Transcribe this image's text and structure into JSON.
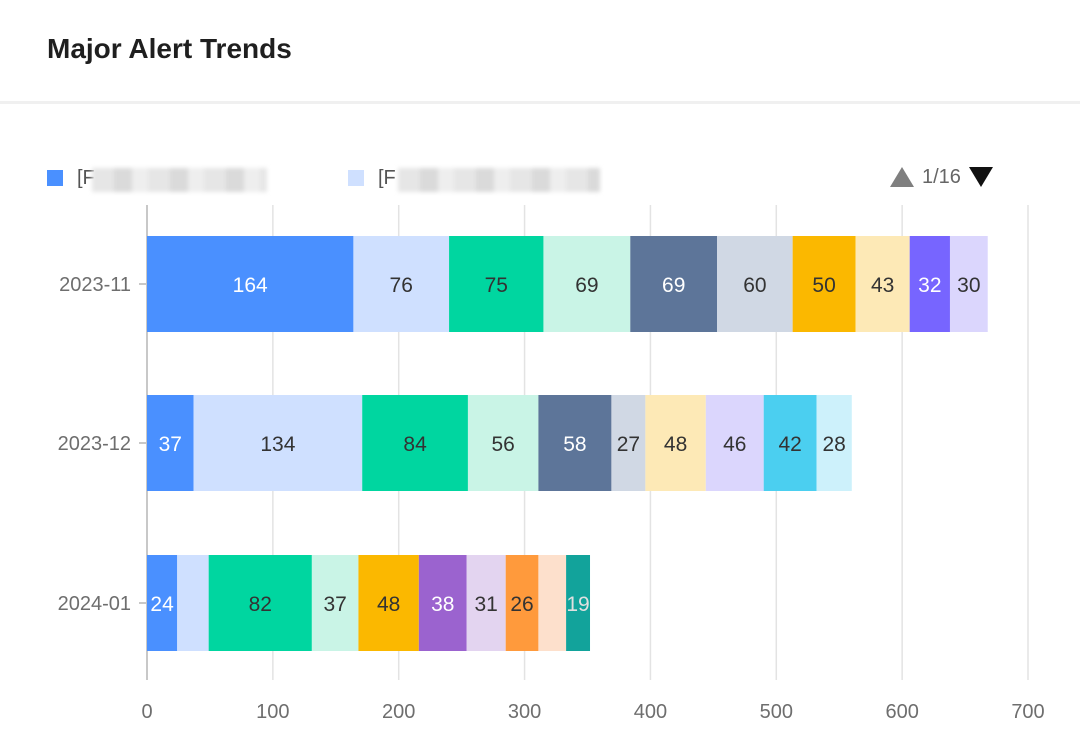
{
  "header": {
    "title": "Major Alert Trends"
  },
  "legend": {
    "items": [
      {
        "label": "[F",
        "color": "#4a90ff"
      },
      {
        "label": "[F",
        "color": "#cfe0ff"
      }
    ],
    "pager": {
      "text": "1/16"
    }
  },
  "chart_data": {
    "type": "bar",
    "orientation": "horizontal",
    "stacked": true,
    "title": "Major Alert Trends",
    "categories": [
      "2023-11",
      "2023-12",
      "2024-01"
    ],
    "xlim": [
      0,
      700
    ],
    "xticks": [
      0,
      100,
      200,
      300,
      400,
      500,
      600,
      700
    ],
    "grid": true,
    "legend_position": "top-left",
    "rows": [
      {
        "category": "2023-11",
        "segments": [
          {
            "value": 164,
            "color": "#4a90ff",
            "label_color": "#ffffff"
          },
          {
            "value": 76,
            "color": "#cfe0ff",
            "label_color": "#333333"
          },
          {
            "value": 75,
            "color": "#00d6a0",
            "label_color": "#333333"
          },
          {
            "value": 69,
            "color": "#c9f4e6",
            "label_color": "#333333"
          },
          {
            "value": 69,
            "color": "#5d7599",
            "label_color": "#ffffff"
          },
          {
            "value": 60,
            "color": "#d0d8e4",
            "label_color": "#333333"
          },
          {
            "value": 50,
            "color": "#fbb800",
            "label_color": "#333333"
          },
          {
            "value": 43,
            "color": "#fde9b6",
            "label_color": "#333333"
          },
          {
            "value": 32,
            "color": "#7765ff",
            "label_color": "#ffffff"
          },
          {
            "value": 30,
            "color": "#dbd6fd",
            "label_color": "#333333"
          }
        ]
      },
      {
        "category": "2023-12",
        "segments": [
          {
            "value": 37,
            "color": "#4a90ff",
            "label_color": "#ffffff"
          },
          {
            "value": 134,
            "color": "#cfe0ff",
            "label_color": "#333333"
          },
          {
            "value": 84,
            "color": "#00d6a0",
            "label_color": "#333333"
          },
          {
            "value": 56,
            "color": "#c9f4e6",
            "label_color": "#333333"
          },
          {
            "value": 58,
            "color": "#5d7599",
            "label_color": "#ffffff"
          },
          {
            "value": 27,
            "color": "#d0d8e4",
            "label_color": "#333333"
          },
          {
            "value": 48,
            "color": "#fde9b6",
            "label_color": "#333333"
          },
          {
            "value": 46,
            "color": "#dbd6fd",
            "label_color": "#333333"
          },
          {
            "value": 42,
            "color": "#4bcff0",
            "label_color": "#333333"
          },
          {
            "value": 28,
            "color": "#cdf1fb",
            "label_color": "#333333"
          }
        ]
      },
      {
        "category": "2024-01",
        "segments": [
          {
            "value": 24,
            "color": "#4a90ff",
            "label_color": "#ffffff"
          },
          {
            "value": 25,
            "color": "#cfe0ff",
            "label_color": "#333333",
            "show_label": false
          },
          {
            "value": 82,
            "color": "#00d6a0",
            "label_color": "#333333"
          },
          {
            "value": 37,
            "color": "#c9f4e6",
            "label_color": "#333333"
          },
          {
            "value": 48,
            "color": "#fbb800",
            "label_color": "#333333"
          },
          {
            "value": 38,
            "color": "#9b63cf",
            "label_color": "#ffffff"
          },
          {
            "value": 31,
            "color": "#e3d4f0",
            "label_color": "#333333"
          },
          {
            "value": 26,
            "color": "#ff9a3c",
            "label_color": "#333333"
          },
          {
            "value": 22,
            "color": "#fde0cc",
            "label_color": "#333333",
            "show_label": false
          },
          {
            "value": 19,
            "color": "#12a39b",
            "label_color": "#e0e0e0"
          }
        ]
      }
    ]
  }
}
